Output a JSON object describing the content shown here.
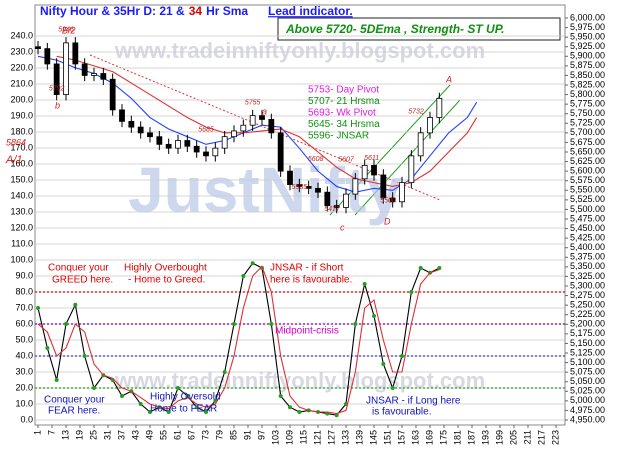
{
  "chart_data": {
    "type": "candlestick",
    "title_parts": [
      "Nifty Hour & 35Hr D: 21 &",
      "34",
      "Hr Sma"
    ],
    "title_colors": [
      "#1a1aff",
      "#e00000",
      "#1a1aff"
    ],
    "subtitle": "Lead indicator.",
    "status": "Above 5720-  5DEma , Strength- ST UP.",
    "watermarks": [
      "www.tradeinniftyonly.blogspot.com",
      "www.tradeinniftyonly.blogspot.com",
      "JustNifty"
    ],
    "xlim": [
      1,
      223
    ],
    "xticks": [
      1,
      7,
      13,
      19,
      25,
      31,
      37,
      43,
      49,
      55,
      61,
      67,
      73,
      79,
      85,
      91,
      97,
      103,
      109,
      115,
      121,
      127,
      133,
      139,
      145,
      151,
      157,
      163,
      169,
      175,
      181,
      187,
      193,
      199,
      205,
      211,
      217,
      223
    ],
    "ylim": [
      0,
      240
    ],
    "yticks": [
      {
        "value": 0,
        "label": "0.0"
      },
      {
        "value": 10,
        "label": "10.0"
      },
      {
        "value": 20,
        "label": "20.0"
      },
      {
        "value": 30,
        "label": "30.0"
      },
      {
        "value": 40,
        "label": "40.0"
      },
      {
        "value": 50,
        "label": "50.0"
      },
      {
        "value": 60,
        "label": "60.0"
      },
      {
        "value": 70,
        "label": "70.0"
      },
      {
        "value": 80,
        "label": "80.0"
      },
      {
        "value": 90,
        "label": "90.0"
      },
      {
        "value": 100,
        "label": "100.0"
      },
      {
        "value": 110,
        "label": "110.0"
      },
      {
        "value": 120,
        "label": "120.0"
      },
      {
        "value": 130,
        "label": "130.0"
      },
      {
        "value": 140,
        "label": "140.0"
      },
      {
        "value": 150,
        "label": "150.0"
      },
      {
        "value": 160,
        "label": "160.0"
      },
      {
        "value": 170,
        "label": "170.0"
      },
      {
        "value": 180,
        "label": "180.0"
      },
      {
        "value": 190,
        "label": "190.0"
      },
      {
        "value": 200,
        "label": "200.0"
      },
      {
        "value": 210,
        "label": "210.0"
      },
      {
        "value": 220,
        "label": "220.0"
      },
      {
        "value": 230,
        "label": "230.0"
      },
      {
        "value": 240,
        "label": "240.0"
      }
    ],
    "y2lim": [
      4950,
      6000
    ],
    "y2ticks": [
      {
        "value": 6000,
        "label": "6,000.00"
      },
      {
        "value": 5975,
        "label": "5,975.00"
      },
      {
        "value": 5950,
        "label": "5,950.00"
      },
      {
        "value": 5925,
        "label": "5,925.00"
      },
      {
        "value": 5900,
        "label": "5,900.00"
      },
      {
        "value": 5875,
        "label": "5,875.00"
      },
      {
        "value": 5850,
        "label": "5,850.00"
      },
      {
        "value": 5825,
        "label": "5,825.00"
      },
      {
        "value": 5800,
        "label": "5,800.00"
      },
      {
        "value": 5775,
        "label": "5,775.00"
      },
      {
        "value": 5750,
        "label": "5,750.00"
      },
      {
        "value": 5725,
        "label": "5,725.00"
      },
      {
        "value": 5700,
        "label": "5,700.00"
      },
      {
        "value": 5675,
        "label": "5,675.00"
      },
      {
        "value": 5650,
        "label": "5,650.00"
      },
      {
        "value": 5625,
        "label": "5,625.00"
      },
      {
        "value": 5600,
        "label": "5,600.00"
      },
      {
        "value": 5575,
        "label": "5,575.00"
      },
      {
        "value": 5550,
        "label": "5,550.00"
      },
      {
        "value": 5525,
        "label": "5,525.00"
      },
      {
        "value": 5500,
        "label": "5,500.00"
      },
      {
        "value": 5475,
        "label": "5,475.00"
      },
      {
        "value": 5450,
        "label": "5,450.00"
      },
      {
        "value": 5425,
        "label": "5,425.00"
      },
      {
        "value": 5400,
        "label": "5,400.00"
      },
      {
        "value": 5375,
        "label": "5,375.00"
      },
      {
        "value": 5350,
        "label": "5,350.00"
      },
      {
        "value": 5325,
        "label": "5,325.00"
      },
      {
        "value": 5300,
        "label": "5,300.00"
      },
      {
        "value": 5275,
        "label": "5,275.00"
      },
      {
        "value": 5250,
        "label": "5,250.00"
      },
      {
        "value": 5225,
        "label": "5,225.00"
      },
      {
        "value": 5200,
        "label": "5,200.00"
      },
      {
        "value": 5175,
        "label": "5,175.00"
      },
      {
        "value": 5150,
        "label": "5,150.00"
      },
      {
        "value": 5125,
        "label": "5,125.00"
      },
      {
        "value": 5100,
        "label": "5,100.00"
      },
      {
        "value": 5075,
        "label": "5,075.00"
      },
      {
        "value": 5050,
        "label": "5,050.00"
      },
      {
        "value": 5025,
        "label": "5,025.00"
      },
      {
        "value": 5000,
        "label": "5,000.00"
      },
      {
        "value": 4975,
        "label": "4,975.00"
      },
      {
        "value": 4950,
        "label": "4,950.00"
      }
    ],
    "grid": true,
    "candles": {
      "axis": "y2",
      "x": [
        1,
        5,
        9,
        13,
        17,
        21,
        25,
        29,
        33,
        37,
        41,
        45,
        49,
        53,
        57,
        61,
        65,
        69,
        73,
        77,
        81,
        85,
        89,
        93,
        97,
        101,
        105,
        109,
        113,
        117,
        121,
        125,
        129,
        133,
        137,
        141,
        145,
        149,
        153,
        157,
        161,
        165,
        169,
        173
      ],
      "open": [
        5925,
        5920,
        5880,
        5800,
        5935,
        5880,
        5850,
        5855,
        5840,
        5760,
        5730,
        5715,
        5700,
        5690,
        5670,
        5660,
        5680,
        5665,
        5650,
        5640,
        5660,
        5690,
        5705,
        5720,
        5745,
        5735,
        5700,
        5600,
        5565,
        5560,
        5555,
        5545,
        5510,
        5505,
        5540,
        5580,
        5615,
        5590,
        5530,
        5520,
        5570,
        5640,
        5700,
        5740
      ],
      "high": [
        5940,
        5935,
        5895,
        5950,
        5950,
        5895,
        5870,
        5870,
        5855,
        5775,
        5745,
        5730,
        5715,
        5705,
        5685,
        5695,
        5695,
        5680,
        5665,
        5675,
        5705,
        5720,
        5735,
        5760,
        5760,
        5750,
        5715,
        5615,
        5580,
        5575,
        5570,
        5560,
        5525,
        5555,
        5595,
        5630,
        5630,
        5605,
        5545,
        5585,
        5655,
        5715,
        5755,
        5805
      ],
      "low": [
        5905,
        5865,
        5785,
        5785,
        5865,
        5835,
        5835,
        5825,
        5745,
        5715,
        5700,
        5685,
        5675,
        5655,
        5645,
        5645,
        5650,
        5635,
        5625,
        5625,
        5645,
        5675,
        5690,
        5705,
        5720,
        5685,
        5585,
        5550,
        5545,
        5540,
        5530,
        5495,
        5490,
        5490,
        5525,
        5565,
        5575,
        5515,
        5505,
        5505,
        5555,
        5625,
        5685,
        5725
      ],
      "close": [
        5920,
        5880,
        5800,
        5935,
        5880,
        5850,
        5855,
        5840,
        5760,
        5730,
        5715,
        5700,
        5690,
        5670,
        5660,
        5680,
        5665,
        5650,
        5640,
        5660,
        5690,
        5705,
        5720,
        5745,
        5735,
        5700,
        5600,
        5565,
        5560,
        5555,
        5545,
        5510,
        5505,
        5540,
        5580,
        5615,
        5590,
        5530,
        5520,
        5570,
        5640,
        5700,
        5740,
        5790
      ],
      "up_color": "#ffffff",
      "down_color": "#000000"
    },
    "series": [
      {
        "color": "#2040ff",
        "axis": "y2",
        "x": [
          1,
          9,
          17,
          25,
          33,
          41,
          49,
          57,
          65,
          73,
          81,
          89,
          97,
          105,
          113,
          121,
          129,
          137,
          145,
          153,
          161,
          169,
          177,
          185,
          189
        ],
        "values": [
          5900,
          5890,
          5870,
          5855,
          5830,
          5790,
          5740,
          5710,
          5690,
          5670,
          5680,
          5700,
          5720,
          5715,
          5660,
          5600,
          5560,
          5545,
          5555,
          5550,
          5580,
          5640,
          5700,
          5740,
          5780
        ]
      },
      {
        "color": "#e03030",
        "axis": "y2",
        "x": [
          1,
          9,
          17,
          25,
          33,
          41,
          49,
          57,
          65,
          73,
          81,
          89,
          97,
          105,
          113,
          121,
          129,
          137,
          145,
          153,
          161,
          169,
          177,
          185,
          189
        ],
        "values": [
          null,
          5900,
          5890,
          5875,
          5860,
          5830,
          5800,
          5770,
          5740,
          5715,
          5700,
          5700,
          5705,
          5710,
          5690,
          5650,
          5610,
          5580,
          5570,
          5560,
          5570,
          5600,
          5650,
          5700,
          5740
        ]
      },
      {
        "color": "#000000",
        "marker_color": "#20a020",
        "x": [
          1,
          5,
          9,
          13,
          17,
          21,
          25,
          29,
          33,
          37,
          41,
          45,
          49,
          53,
          57,
          61,
          65,
          69,
          73,
          77,
          81,
          85,
          89,
          93,
          97,
          101,
          105,
          109,
          113,
          117,
          121,
          125,
          129,
          133,
          137,
          141,
          145,
          149,
          153,
          157,
          161,
          165,
          169,
          173
        ],
        "values": [
          70,
          45,
          25,
          60,
          72,
          40,
          20,
          28,
          25,
          15,
          18,
          10,
          5,
          8,
          5,
          20,
          15,
          8,
          5,
          12,
          30,
          60,
          90,
          98,
          95,
          60,
          15,
          8,
          5,
          6,
          5,
          4,
          3,
          10,
          60,
          85,
          65,
          35,
          20,
          40,
          80,
          95,
          92,
          95
        ]
      },
      {
        "color": "#e03030",
        "x": [
          1,
          5,
          9,
          13,
          17,
          21,
          25,
          29,
          33,
          37,
          41,
          45,
          49,
          53,
          57,
          61,
          65,
          69,
          73,
          77,
          81,
          85,
          89,
          93,
          97,
          101,
          105,
          109,
          113,
          117,
          121,
          125,
          129,
          133,
          137,
          141,
          145,
          149,
          153,
          157,
          161,
          165,
          169,
          173
        ],
        "values": [
          60,
          55,
          40,
          45,
          60,
          55,
          35,
          28,
          26,
          20,
          18,
          14,
          10,
          8,
          7,
          12,
          14,
          10,
          8,
          10,
          20,
          40,
          70,
          90,
          96,
          80,
          40,
          15,
          8,
          6,
          5,
          5,
          4,
          6,
          30,
          70,
          75,
          50,
          30,
          30,
          60,
          85,
          92,
          94
        ]
      }
    ],
    "reference_lines": [
      {
        "value": 80,
        "color": "#e00000"
      },
      {
        "value": 60,
        "color": "#8000a0"
      },
      {
        "value": 40,
        "color": "#4040c0"
      },
      {
        "value": 20,
        "color": "#20a020"
      }
    ],
    "price_labels": [
      {
        "x": 13,
        "value": 5946
      },
      {
        "x": 9,
        "value": 5792
      },
      {
        "x": 93,
        "value": 5755
      },
      {
        "x": 73,
        "value": 5685
      },
      {
        "x": 113,
        "value": 5535
      },
      {
        "x": 127,
        "value": 5477
      },
      {
        "x": 151,
        "value": 5500
      },
      {
        "x": 163,
        "value": 5732
      },
      {
        "x": 120,
        "value": 5608
      },
      {
        "x": 133,
        "value": 5607
      },
      {
        "x": 144,
        "value": 5611
      }
    ],
    "wave_labels": [
      "B/2",
      "b",
      "A/1",
      "5864",
      "a",
      "c",
      "D",
      "A"
    ],
    "pivots": [
      {
        "text": "5753- Day Pivot",
        "color": "#e020e0"
      },
      {
        "text": "5707- 21 Hrsma",
        "color": "#109010"
      },
      {
        "text": "5693- Wk Pivot",
        "color": "#e020e0"
      },
      {
        "text": "5645- 34 Hrsma",
        "color": "#109010"
      },
      {
        "text": "5596- JNSAR",
        "color": "#109010"
      }
    ],
    "annotations": [
      {
        "text": "Conquer your",
        "color": "#e00000"
      },
      {
        "text": "GREED here.",
        "color": "#e00000"
      },
      {
        "text": "Highly Overbought",
        "color": "#e00000"
      },
      {
        "text": "- Home to Greed.",
        "color": "#e00000"
      },
      {
        "text": "JNSAR - if Short",
        "color": "#e00000"
      },
      {
        "text": "here is favourable.",
        "color": "#e00000"
      },
      {
        "text": "Midpoint-crisis",
        "color": "#d000d0"
      },
      {
        "text": "Conquer your",
        "color": "#1010c0"
      },
      {
        "text": "FEAR here.",
        "color": "#1010c0"
      },
      {
        "text": "Highly Oversold",
        "color": "#1010c0"
      },
      {
        "text": "Home to FEAR",
        "color": "#1010c0"
      },
      {
        "text": "JNSAR - if Long here",
        "color": "#1010c0"
      },
      {
        "text": "is favourable.",
        "color": "#1010c0"
      }
    ]
  }
}
